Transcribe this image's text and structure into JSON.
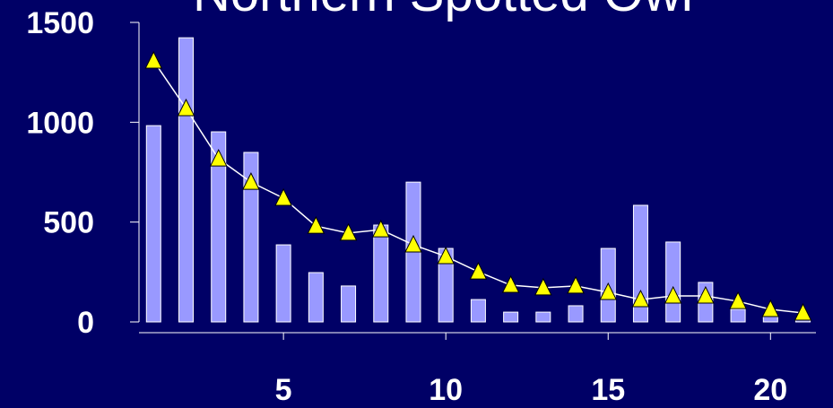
{
  "chart_data": {
    "type": "bar+line",
    "title": "Northern Spotted Owl",
    "x": [
      1,
      2,
      3,
      4,
      5,
      6,
      7,
      8,
      9,
      10,
      11,
      12,
      13,
      14,
      15,
      16,
      17,
      18,
      19,
      20,
      21
    ],
    "xlim": [
      0.55,
      21.4
    ],
    "xticks": [
      5,
      10,
      15,
      20
    ],
    "ylim": [
      0,
      1500
    ],
    "yticks": [
      0,
      500,
      1000,
      1500
    ],
    "series": [
      {
        "type": "bar",
        "color": "#9999ff",
        "values": [
          983,
          1423,
          952,
          849,
          386,
          247,
          180,
          485,
          700,
          368,
          112,
          49,
          49,
          81,
          368,
          584,
          400,
          198,
          63,
          31,
          10
        ]
      },
      {
        "type": "line",
        "color": "#ffff00",
        "values": [
          1307,
          1069,
          817,
          700,
          620,
          480,
          445,
          462,
          386,
          328,
          251,
          184,
          171,
          180,
          148,
          112,
          130,
          130,
          103,
          63,
          45
        ]
      }
    ]
  }
}
